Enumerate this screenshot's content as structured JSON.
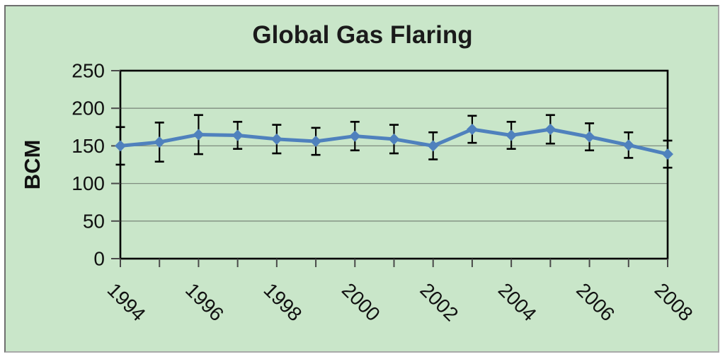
{
  "chart_data": {
    "type": "line",
    "title": "Global Gas Flaring",
    "ylabel": "BCM",
    "xlabel": "",
    "x": [
      1994,
      1995,
      1996,
      1997,
      1998,
      1999,
      2000,
      2001,
      2002,
      2003,
      2004,
      2005,
      2006,
      2007,
      2008
    ],
    "series": [
      {
        "name": "Global Gas Flaring",
        "values": [
          150,
          155,
          165,
          164,
          159,
          156,
          163,
          159,
          150,
          172,
          164,
          172,
          162,
          151,
          139
        ],
        "error_plus_minus": [
          25,
          26,
          26,
          18,
          19,
          18,
          19,
          19,
          18,
          18,
          18,
          19,
          18,
          17,
          18
        ]
      }
    ],
    "ylim": [
      0,
      250
    ],
    "yticks": [
      0,
      50,
      100,
      150,
      200,
      250
    ],
    "xtick_labeled_years": [
      1994,
      1996,
      1998,
      2000,
      2002,
      2004,
      2006,
      2008
    ],
    "x_label_rotation_deg": 45,
    "grid": "horizontal",
    "legend": "none",
    "colors": {
      "background": "#c9e6c9",
      "card_border": "#6f6f6f",
      "line": "#4f81bd",
      "marker": "#4f81bd",
      "error_bar": "#000000",
      "gridline": "#7f8c7f",
      "axis_frame": "#000000",
      "tick": "#4a4a4a",
      "text": "#111111"
    }
  }
}
